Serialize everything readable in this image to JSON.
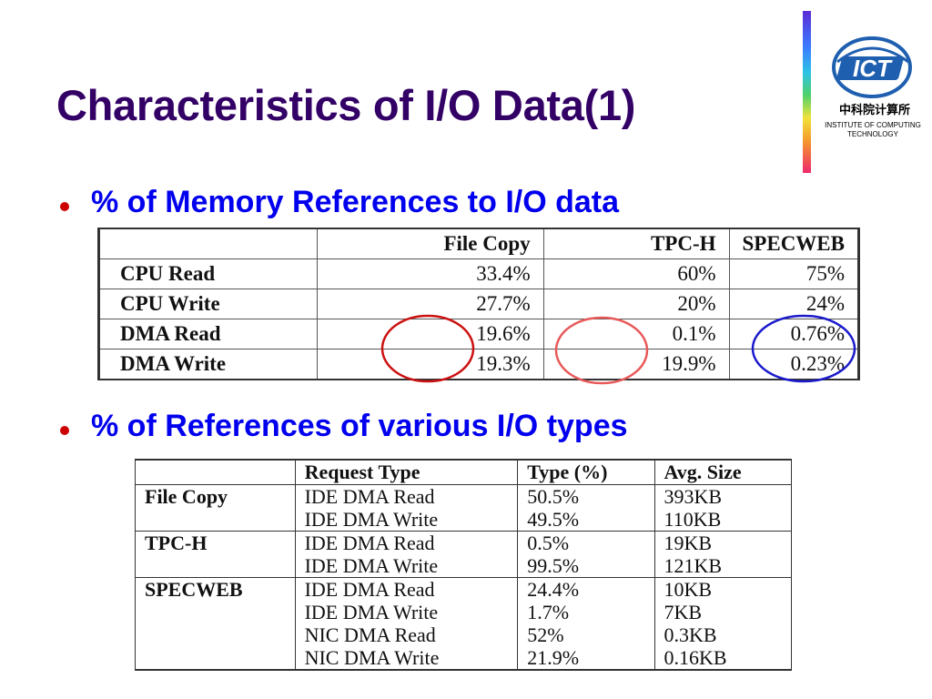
{
  "title": "Characteristics of I/O Data(1)",
  "logo": {
    "abbr": "ICT",
    "chinese": "中科院计算所",
    "english_line1": "INSTITUTE OF COMPUTING",
    "english_line2": "TECHNOLOGY",
    "accent_color": "#1f5fb0"
  },
  "bullets": [
    {
      "text": "% of Memory References to I/O data"
    },
    {
      "text": "% of References of various I/O types"
    }
  ],
  "table1": {
    "headers": [
      "",
      "File Copy",
      "TPC-H",
      "SPECWEB"
    ],
    "rows": [
      {
        "label": "CPU Read",
        "values": [
          "33.4%",
          "60%",
          "75%"
        ]
      },
      {
        "label": "CPU Write",
        "values": [
          "27.7%",
          "20%",
          "24%"
        ]
      },
      {
        "label": "DMA Read",
        "values": [
          "19.6%",
          "0.1%",
          "0.76%"
        ]
      },
      {
        "label": "DMA Write",
        "values": [
          "19.3%",
          "19.9%",
          "0.23%"
        ]
      }
    ],
    "highlight_colors": [
      "#cc1111",
      "#e85a5a",
      "#1a1acc"
    ]
  },
  "table2": {
    "headers": [
      "",
      "Request Type",
      "Type (%)",
      "Avg. Size"
    ],
    "groups": [
      {
        "workload": "File Copy",
        "rows": [
          [
            "IDE DMA Read",
            "50.5%",
            "393KB"
          ],
          [
            "IDE DMA Write",
            "49.5%",
            "110KB"
          ]
        ]
      },
      {
        "workload": "TPC-H",
        "rows": [
          [
            "IDE DMA Read",
            "0.5%",
            "19KB"
          ],
          [
            "IDE DMA Write",
            "99.5%",
            "121KB"
          ]
        ]
      },
      {
        "workload": "SPECWEB",
        "rows": [
          [
            "IDE DMA Read",
            "24.4%",
            "10KB"
          ],
          [
            "IDE DMA Write",
            "1.7%",
            "7KB"
          ],
          [
            "NIC DMA Read",
            "52%",
            "0.3KB"
          ],
          [
            "NIC DMA Write",
            "21.9%",
            "0.16KB"
          ]
        ]
      }
    ]
  }
}
